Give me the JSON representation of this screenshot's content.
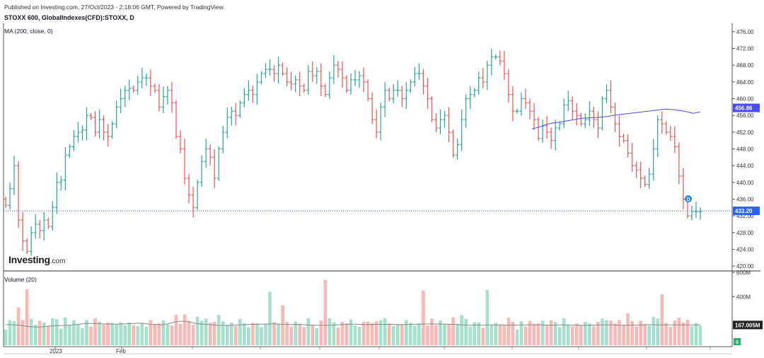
{
  "header": {
    "published": "Published on Investing.com, 27/Oct/2023 - 2:18:06 GMT, Powered by TradingView.",
    "symbol": "STOXX 600, GlobalIndexes(CFD):STOXX, D",
    "ma_label": "MA (200, close, 0)",
    "volume_label": "Volume (20)"
  },
  "logo": {
    "brand": "Investing",
    "suffix": ".com"
  },
  "colors": {
    "up": "#26a69a",
    "down": "#ef5350",
    "vol_up": "#a5e0cd",
    "vol_down": "#f8b9b6",
    "ma": "#4a4aff",
    "last_price": "#2962ff",
    "vol_ma": "#888888"
  },
  "chart_data": [
    {
      "type": "ohlc",
      "title": "STOXX 600, GlobalIndexes(CFD):STOXX, D",
      "y_ticks": [
        "476.00",
        "472.00",
        "468.00",
        "464.00",
        "460.00",
        "456.00",
        "452.00",
        "448.00",
        "444.00",
        "440.00",
        "436.00",
        "432.00",
        "428.00",
        "424.00",
        "420.00"
      ],
      "ylim": [
        419,
        478
      ],
      "x_ticks": [
        "2023",
        "Feb"
      ],
      "close": [
        434.5,
        438.5,
        444,
        431,
        426,
        423.5,
        428,
        430,
        428.5,
        431,
        429.5,
        434,
        440,
        440.5,
        446.5,
        448.5,
        451,
        452,
        452.5,
        456,
        455.5,
        452,
        455,
        452,
        451,
        454,
        458,
        460,
        462,
        462.5,
        462,
        464,
        465,
        465,
        463,
        462,
        458,
        460.5,
        462,
        459,
        451,
        448,
        441,
        437,
        434,
        440,
        445,
        448,
        446,
        441,
        448,
        452,
        455.5,
        457,
        456,
        459,
        461,
        462,
        461,
        464,
        466,
        467,
        467,
        466,
        468,
        466,
        464,
        463.5,
        464.5,
        463,
        462,
        466.5,
        465.5,
        466.5,
        463,
        461,
        465,
        468,
        467,
        465,
        462,
        464.5,
        464.5,
        465.5,
        464,
        460,
        455,
        452,
        458,
        462,
        460,
        462,
        462,
        460,
        462,
        464,
        466,
        466,
        463,
        460,
        455,
        453,
        455,
        456,
        452,
        446.5,
        449,
        455,
        460,
        461,
        462,
        465,
        464,
        468,
        470,
        470,
        469,
        466,
        461,
        457,
        457,
        460,
        459,
        457,
        455,
        450.5,
        453.5,
        452,
        450,
        453,
        454,
        458.5,
        459.5,
        457,
        456,
        454,
        455,
        457,
        455,
        453,
        460,
        462,
        458,
        454,
        451,
        450,
        447,
        444,
        443,
        441,
        439.5,
        442,
        448,
        455,
        454,
        452,
        451,
        448.5,
        441.5,
        436,
        432,
        433,
        433,
        433
      ]
    },
    {
      "type": "line",
      "name": "MA (200, close, 0)",
      "last_label": "456.86",
      "x_range": [
        0.5,
        1.0
      ],
      "values": [
        452.8,
        453.2,
        453.8,
        454.2,
        454.4,
        454.7,
        455,
        455.3,
        455.4,
        455.5,
        455.6,
        455.8,
        456.1,
        456.3,
        456.5,
        456.7,
        456.9,
        457.1,
        457.3,
        457.5,
        457.4,
        457.2,
        456.9,
        456.5,
        456.86
      ]
    },
    {
      "type": "bar",
      "name": "Volume (20)",
      "y_ticks": [
        "600M",
        "400M"
      ],
      "ylim": [
        0,
        600
      ],
      "last_label": "167.005M",
      "volume_ma": [
        170,
        170,
        168,
        166,
        160,
        155,
        152,
        150,
        151,
        155,
        158,
        160,
        162,
        163,
        165,
        166,
        170,
        175,
        178,
        179,
        180,
        178,
        176,
        175,
        175,
        174,
        175,
        176,
        178,
        180,
        182,
        180,
        176,
        172,
        170,
        168,
        172,
        180,
        190,
        196,
        198,
        195,
        188,
        180,
        175,
        172,
        170,
        168,
        165,
        163,
        163,
        165,
        166,
        168,
        170,
        171,
        172,
        172,
        173,
        174,
        176,
        176,
        174,
        172,
        170,
        170,
        171,
        170,
        168,
        166,
        165,
        164,
        165,
        165,
        166,
        168,
        170,
        172,
        174,
        174,
        172,
        170,
        170,
        171,
        172,
        172,
        172,
        171,
        170,
        170,
        170,
        171,
        172,
        173,
        174,
        175,
        176,
        176,
        175,
        174,
        173,
        172,
        170,
        168,
        166,
        165,
        166,
        166,
        166,
        167,
        168,
        168,
        167,
        166,
        166,
        166,
        167,
        167,
        167,
        168,
        168,
        167,
        166,
        166,
        166,
        168,
        168,
        167,
        166,
        166,
        165,
        165,
        165,
        166,
        167,
        168,
        168,
        167,
        166,
        165,
        165,
        165,
        166,
        167,
        168,
        169,
        169,
        168,
        168,
        167,
        167,
        167,
        167,
        167,
        167,
        167,
        167,
        167
      ]
    },
    {
      "type": "hline",
      "name": "last price",
      "value": 433.2,
      "label": "433.20"
    }
  ]
}
